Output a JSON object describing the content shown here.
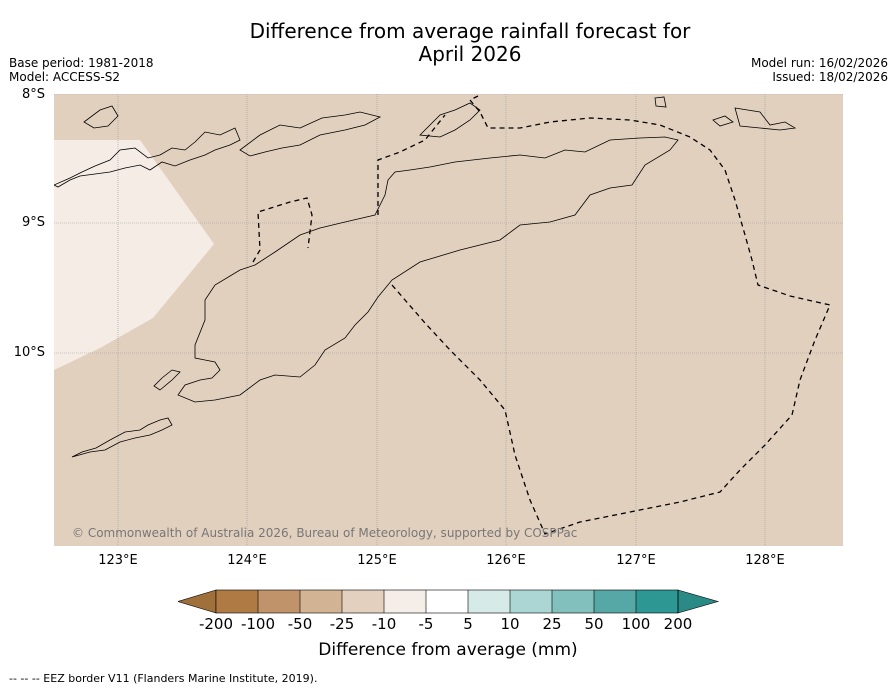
{
  "title": {
    "line1": "Difference from average rainfall forecast for",
    "line2": "April 2026"
  },
  "meta": {
    "base_period": "Base period: 1981-2018",
    "model": "Model: ACCESS-S2",
    "model_run": "Model run: 16/02/2026",
    "issued": "Issued: 18/02/2026"
  },
  "map": {
    "lat_labels": [
      "8°S",
      "9°S",
      "10°S"
    ],
    "lon_labels": [
      "123°E",
      "124°E",
      "125°E",
      "126°E",
      "127°E",
      "128°E"
    ],
    "copyright": "© Commonwealth of Australia 2026, Bureau of Meteorology, supported by COSPPac",
    "colors": {
      "dry_moderate": "#e2d0bf",
      "dry_slight": "#f5ece6",
      "eez_line": "#000000",
      "grid": "#999999"
    }
  },
  "colorbar": {
    "title": "Difference from average (mm)",
    "tick_labels": [
      "-200",
      "-100",
      "-50",
      "-25",
      "-10",
      "-5",
      "5",
      "10",
      "25",
      "50",
      "100",
      "200"
    ],
    "colors": [
      "#a0703a",
      "#b07a45",
      "#c0936a",
      "#d2b394",
      "#e4d0bf",
      "#f5ede7",
      "#ffffff",
      "#d6ebe8",
      "#acd6d3",
      "#82c0bd",
      "#56a8a6",
      "#2c9793",
      "#2a8a86"
    ]
  },
  "footer": "--  --  -- EEZ border V11 (Flanders Marine Institute, 2019)."
}
